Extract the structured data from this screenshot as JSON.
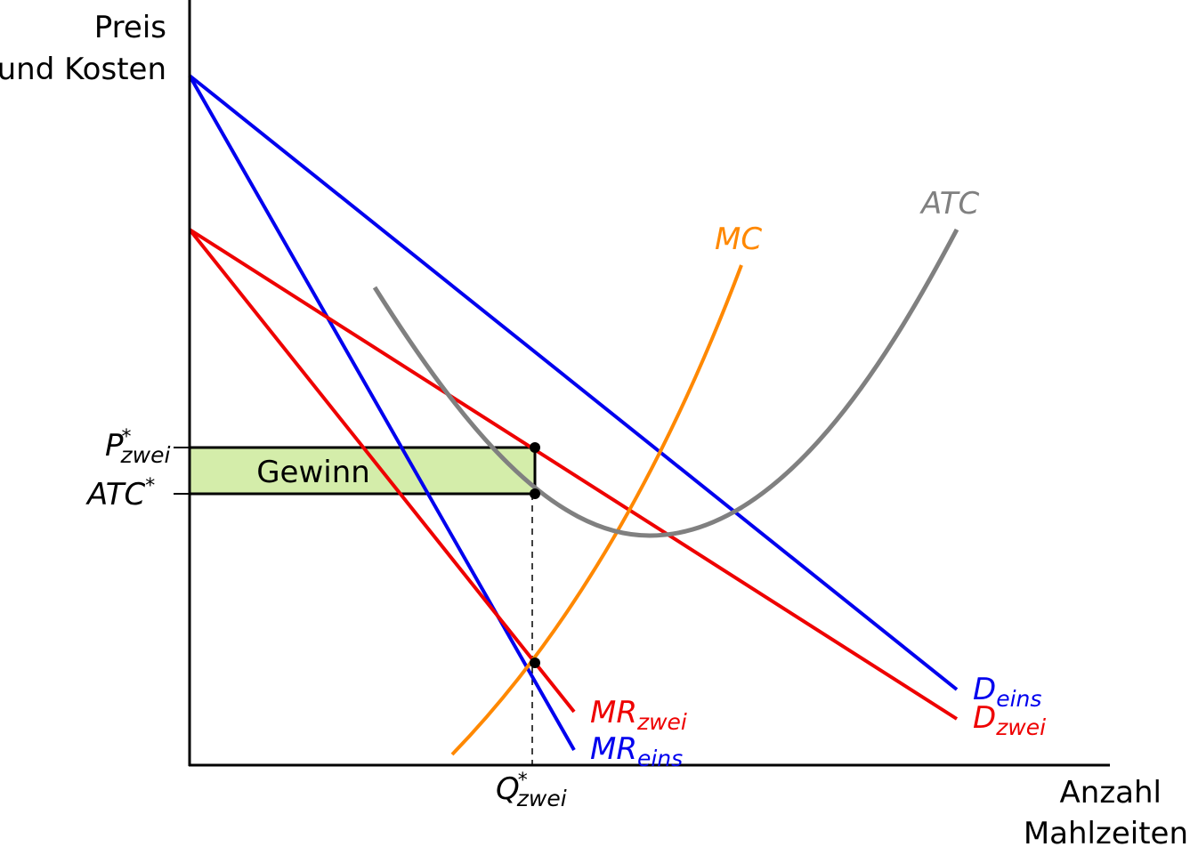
{
  "axes": {
    "y_label": [
      "Preis",
      "und Kosten"
    ],
    "x_label": [
      "Anzahl",
      "Mahlzeiten"
    ]
  },
  "curves": {
    "mc": {
      "main": "MC"
    },
    "atc": {
      "main": "ATC"
    },
    "d_eins": {
      "main": "D",
      "sub": "eins"
    },
    "d_zwei": {
      "main": "D",
      "sub": "zwei"
    },
    "mr_zwei": {
      "main": "MR",
      "sub": "zwei"
    },
    "mr_eins": {
      "main": "MR",
      "sub": "eins"
    }
  },
  "ticks": {
    "p": {
      "main": "P",
      "sup": "*",
      "sub": "zwei"
    },
    "atc": {
      "main": "ATC",
      "sup": "*"
    },
    "q": {
      "main": "Q",
      "sup": "*",
      "sub": "zwei"
    }
  },
  "area_label": "Gewinn"
}
